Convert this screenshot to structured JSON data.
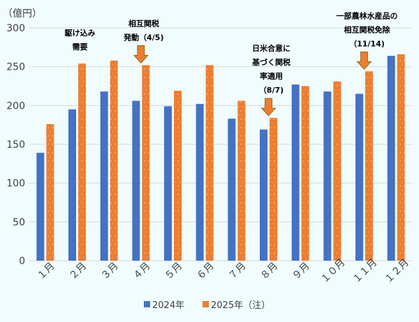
{
  "chart_data": {
    "type": "bar",
    "unit_label": "（億円）",
    "categories": [
      "１月",
      "２月",
      "３月",
      "４月",
      "５月",
      "６月",
      "７月",
      "８月",
      "９月",
      "１０月",
      "１１月",
      "１２月"
    ],
    "series": [
      {
        "name": "2024年",
        "color": "#4472c4",
        "values": [
          139,
          195,
          218,
          206,
          199,
          202,
          183,
          169,
          227,
          218,
          215,
          264
        ]
      },
      {
        "name": "2025年（注）",
        "color": "#ed7d31",
        "pattern": "dotted",
        "values": [
          176,
          254,
          258,
          252,
          219,
          252,
          206,
          184,
          225,
          231,
          244,
          266
        ]
      }
    ],
    "ylim": [
      0,
      300
    ],
    "yticks": [
      0,
      50,
      100,
      150,
      200,
      250,
      300
    ],
    "grid": true,
    "legend": "bottom",
    "annotations": [
      {
        "category_index": 1,
        "lines": [
          "駆け込み",
          "需要"
        ],
        "arrow": false
      },
      {
        "category_index": 3,
        "lines": [
          "相互関税",
          "発動（4/5)"
        ],
        "arrow": true
      },
      {
        "category_index": 7,
        "lines": [
          "日米合意に",
          "基づく関税",
          "率適用",
          "（8/7)"
        ],
        "arrow": true
      },
      {
        "category_index": 10,
        "lines": [
          "一部農林水産品の",
          "相互関税免除",
          "（11/14)"
        ],
        "arrow": true
      }
    ]
  }
}
